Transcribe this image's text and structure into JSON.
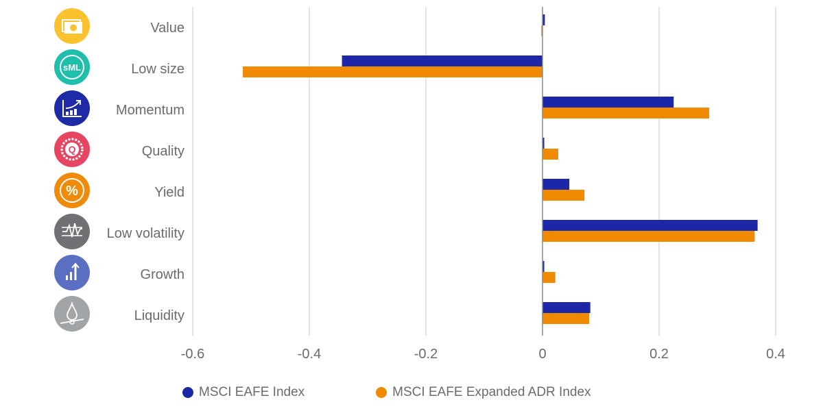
{
  "chart_data": {
    "type": "bar",
    "orientation": "horizontal",
    "title": "",
    "xlabel": "",
    "ylabel": "",
    "categories": [
      "Value",
      "Low size",
      "Momentum",
      "Quality",
      "Yield",
      "Low volatility",
      "Growth",
      "Liquidity"
    ],
    "category_icons": [
      {
        "name": "money-bill-icon",
        "color": "#f9c22e"
      },
      {
        "name": "size-sml-icon",
        "color": "#1fbfab"
      },
      {
        "name": "trend-up-chart-icon",
        "color": "#1f2aa6"
      },
      {
        "name": "quality-badge-icon",
        "color": "#e54561"
      },
      {
        "name": "percent-icon",
        "color": "#f08a0a"
      },
      {
        "name": "volatility-wave-icon",
        "color": "#6f7175"
      },
      {
        "name": "growth-bars-icon",
        "color": "#5b6fc2"
      },
      {
        "name": "liquidity-drop-icon",
        "color": "#a2a5a8"
      }
    ],
    "series": [
      {
        "name": "MSCI EAFE Index",
        "color": "#1c27a8",
        "values": [
          0.004,
          -0.344,
          0.225,
          0.003,
          0.046,
          0.369,
          0.003,
          0.082
        ]
      },
      {
        "name": "MSCI EAFE Expanded ADR Index",
        "color": "#f08a00",
        "values": [
          -0.002,
          -0.514,
          0.286,
          0.027,
          0.072,
          0.364,
          0.022,
          0.08
        ]
      }
    ],
    "xlim": [
      -0.6,
      0.4
    ],
    "xticks": [
      -0.6,
      -0.4,
      -0.2,
      0,
      0.2,
      0.4
    ],
    "xtick_labels": [
      "-0.6",
      "-0.4",
      "-0.2",
      "0",
      "0.2",
      "0.4"
    ],
    "grid": true,
    "legend_position": "bottom"
  },
  "legend": {
    "items": [
      {
        "label": "MSCI EAFE Index",
        "color": "#1c27a8"
      },
      {
        "label": "MSCI EAFE Expanded ADR Index",
        "color": "#f08a00"
      }
    ]
  }
}
